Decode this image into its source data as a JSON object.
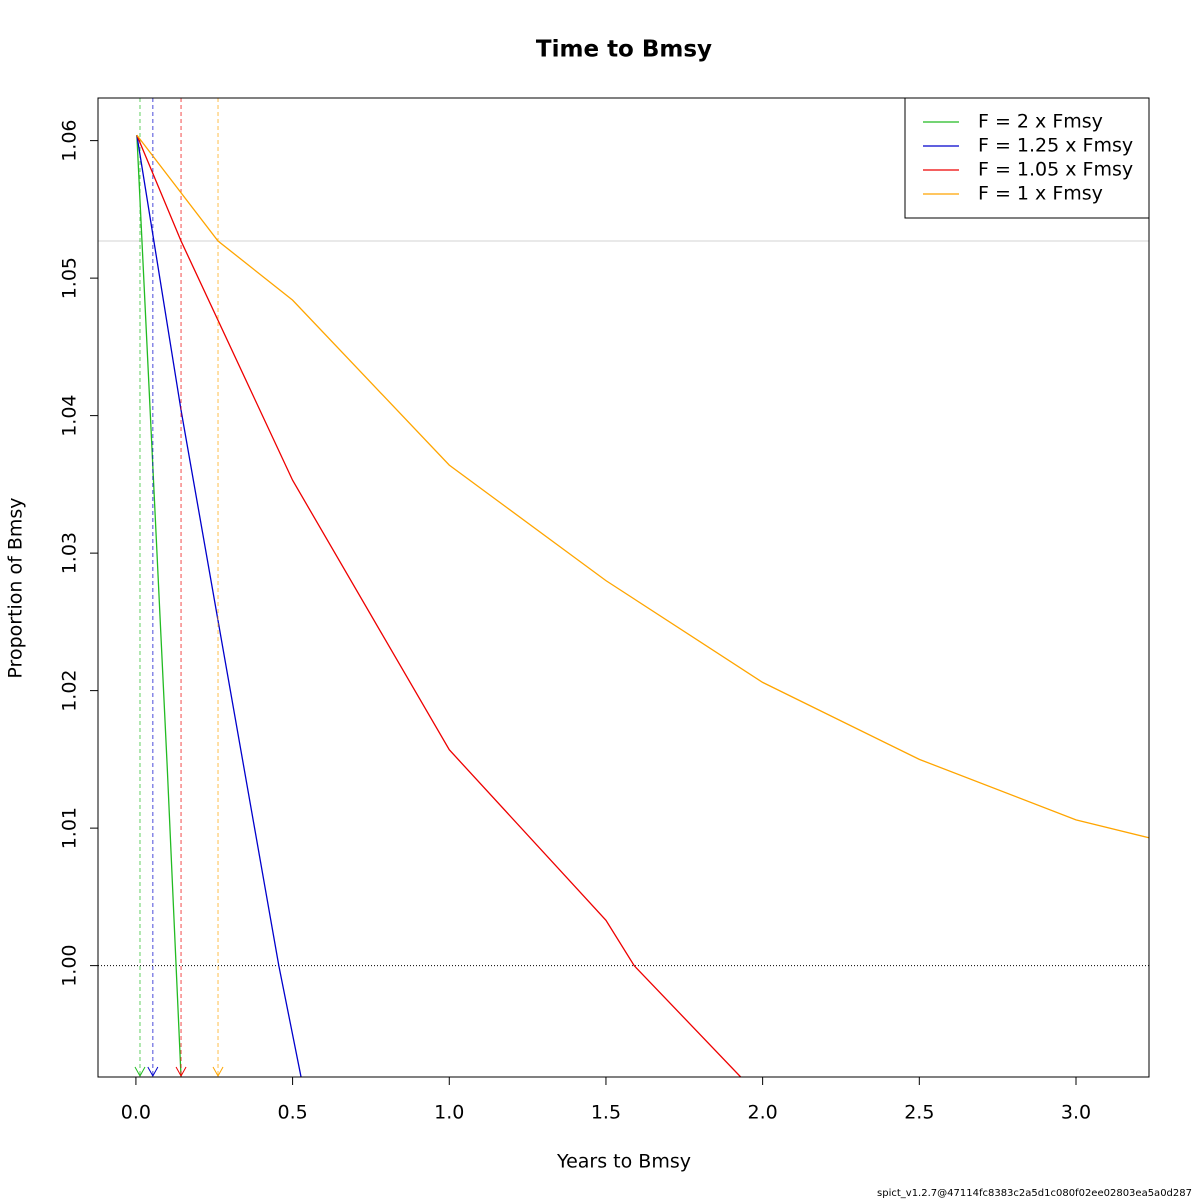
{
  "chart_data": {
    "type": "line",
    "title": "Time to Bmsy",
    "x_label": "Years to Bmsy",
    "y_label": "Proportion of Bmsy",
    "footer": "spict_v1.2.7@47114fc8383c2a5d1c080f02ee02803ea5a0d287",
    "xlim": [
      -0.121,
      3.233
    ],
    "ylim": [
      0.9919,
      1.0631
    ],
    "xticks": [
      {
        "value": 0,
        "label": "0.0"
      },
      0.5,
      {
        "value": 1,
        "label": "1.0"
      },
      1.5,
      {
        "value": 2,
        "label": "2.0"
      },
      2.5,
      {
        "value": 3,
        "label": "3.0"
      }
    ],
    "yticks": [
      {
        "value": 1,
        "label": "1.00"
      },
      1.01,
      1.02,
      1.03,
      1.04,
      1.05,
      1.06
    ],
    "reference_line": 1.0,
    "start_line": 1.0527,
    "legend_position": "top-right",
    "series": [
      {
        "name": "F = 2 x Fmsy",
        "color": "#22bb22",
        "time": 0.013,
        "x": [
          0.003,
          0.05,
          0.1,
          0.144
        ],
        "values": [
          1.0604,
          1.0382,
          1.0144,
          0.9919
        ]
      },
      {
        "name": "F = 1.25 x Fmsy",
        "color": "#0000cc",
        "time": 0.054,
        "x": [
          0.003,
          0.144,
          0.262,
          0.456,
          0.527
        ],
        "values": [
          1.0604,
          1.0404,
          1.0251,
          1.0,
          0.9919
        ]
      },
      {
        "name": "F = 1.05 x Fmsy",
        "color": "#ee0000",
        "time": 0.144,
        "x": [
          0.003,
          0.144,
          0.5,
          1.0,
          1.5,
          1.59,
          1.93
        ],
        "values": [
          1.0604,
          1.0527,
          1.0353,
          1.0157,
          1.0033,
          1.0,
          0.9919
        ]
      },
      {
        "name": "F = 1 x Fmsy",
        "color": "#ffa500",
        "time": 0.262,
        "x": [
          0.003,
          0.262,
          0.5,
          1.0,
          1.5,
          2.0,
          2.5,
          3.0,
          3.233
        ],
        "values": [
          1.0604,
          1.0527,
          1.0484,
          1.0364,
          1.028,
          1.0206,
          1.015,
          1.0106,
          1.0093
        ]
      }
    ]
  }
}
